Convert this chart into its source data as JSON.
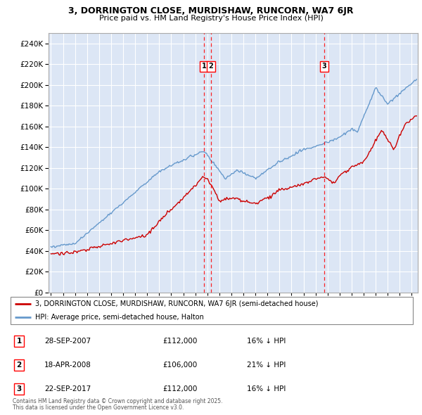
{
  "title_line1": "3, DORRINGTON CLOSE, MURDISHAW, RUNCORN, WA7 6JR",
  "title_line2": "Price paid vs. HM Land Registry's House Price Index (HPI)",
  "legend_line1": "3, DORRINGTON CLOSE, MURDISHAW, RUNCORN, WA7 6JR (semi-detached house)",
  "legend_line2": "HPI: Average price, semi-detached house, Halton",
  "red_color": "#cc0000",
  "blue_color": "#6699cc",
  "bg_color": "#dce6f5",
  "grid_color": "#ffffff",
  "transactions": [
    {
      "label": "1",
      "date": "28-SEP-2007",
      "price": "£112,000",
      "hpi_note": "16% ↓ HPI",
      "x": 2007.74
    },
    {
      "label": "2",
      "date": "18-APR-2008",
      "price": "£106,000",
      "hpi_note": "21% ↓ HPI",
      "x": 2008.3
    },
    {
      "label": "3",
      "date": "22-SEP-2017",
      "price": "£112,000",
      "hpi_note": "16% ↓ HPI",
      "x": 2017.73
    }
  ],
  "footnote1": "Contains HM Land Registry data © Crown copyright and database right 2025.",
  "footnote2": "This data is licensed under the Open Government Licence v3.0.",
  "ylim": [
    0,
    250000
  ],
  "xlim": [
    1994.8,
    2025.5
  ],
  "yticks": [
    0,
    20000,
    40000,
    60000,
    80000,
    100000,
    120000,
    140000,
    160000,
    180000,
    200000,
    220000,
    240000
  ]
}
